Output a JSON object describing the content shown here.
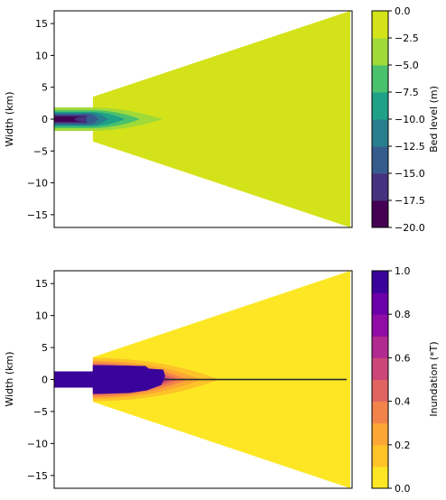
{
  "chart_data": [
    {
      "type": "heatmap",
      "title": "",
      "xlabel": "",
      "ylabel": "Width (km)",
      "ylim": [
        -17,
        17
      ],
      "yticks": [
        15,
        10,
        5,
        0,
        -5,
        -10,
        -15
      ],
      "x_ticklabels_shown": false,
      "domain_shape": {
        "channel_half_width_km": 1.2,
        "step_x_fraction": 0.13,
        "step_half_width_km": 3.5,
        "end_half_width_km": 17
      },
      "field_description_values": {
        "offshore_bed_level_m": -2.5,
        "channel_bed_level_min_m": -20.0
      },
      "colorbar": {
        "label": "Bed level (m)",
        "range": [
          -20.0,
          0.0
        ],
        "ticks": [
          "0.0",
          "−2.5",
          "−5.0",
          "−7.5",
          "−10.0",
          "−12.5",
          "−15.0",
          "−17.5",
          "−20.0"
        ],
        "levels": 8,
        "colors": [
          "#440154",
          "#46327e",
          "#365c8d",
          "#277f8e",
          "#1fa187",
          "#4ac16d",
          "#a0da39",
          "#d4e21a"
        ]
      }
    },
    {
      "type": "heatmap",
      "title": "",
      "xlabel": "",
      "ylabel": "Width (km)",
      "ylim": [
        -17,
        17
      ],
      "yticks": [
        15,
        10,
        5,
        0,
        -5,
        -10,
        -15
      ],
      "x_ticklabels_shown": false,
      "field_description_values": {
        "background_inundation": 0.0,
        "channel_inundation": 1.0
      },
      "colorbar": {
        "label": "Inundation (*T)",
        "range": [
          0.0,
          1.0
        ],
        "ticks": [
          "1.0",
          "0.8",
          "0.6",
          "0.4",
          "0.2",
          "0.0"
        ],
        "levels": 10,
        "colors": [
          "#fde725",
          "#fdc328",
          "#fca636",
          "#f2844b",
          "#e16462",
          "#cc4778",
          "#b12a90",
          "#8f0da4",
          "#6a00a8",
          "#3a049a"
        ]
      }
    }
  ]
}
